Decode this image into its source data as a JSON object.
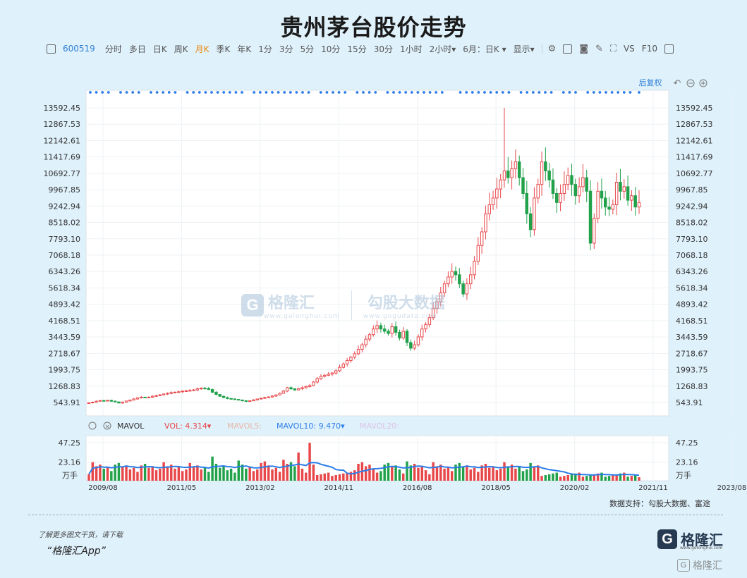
{
  "title": "贵州茅台股价走势",
  "toolbar": {
    "code": "600519",
    "periods": [
      "分时",
      "多日",
      "日K",
      "周K",
      "月K",
      "季K",
      "年K",
      "1分",
      "3分",
      "5分",
      "10分",
      "15分",
      "30分",
      "1小时",
      "2小时▾",
      "6月：日K ▾",
      "显示▾"
    ],
    "active_period": "月K",
    "vs": "VS",
    "f10": "F10"
  },
  "chart_controls": {
    "restore": "后复权"
  },
  "volume_legend": {
    "name": "MAVOL",
    "vol_label": "VOL: 4.314▾",
    "mavol5": "MAVOL5:",
    "mavol10": "MAVOL10: 9.470▾",
    "mavol20": "MAVOL20:",
    "unit": "万手"
  },
  "colors": {
    "up": "#e8474a",
    "down": "#20a14a",
    "ma": "#2b7de9",
    "axis_text": "#333333"
  },
  "chart_data": {
    "type": "candlestick",
    "price_axis_ticks": [
      13592.45,
      12867.53,
      12142.61,
      11417.69,
      10692.77,
      9967.85,
      9242.94,
      8518.02,
      7793.1,
      7068.18,
      6343.26,
      5618.34,
      4893.42,
      4168.51,
      3443.59,
      2718.67,
      1993.75,
      1268.83,
      543.91
    ],
    "price_axis_labels": [
      "13592.45",
      "12867.53",
      "12142.61",
      "11417.69",
      "10692.77",
      "9967.85",
      "9242.94",
      "8518.02",
      "7793.10",
      "7068.18",
      "6343.26",
      "5618.34",
      "4893.42",
      "4168.51",
      "3443.59",
      "2718.67",
      "1993.75",
      "1268.83",
      "543.91"
    ],
    "volume_axis_ticks": [
      47.25,
      23.16
    ],
    "volume_axis_labels": [
      "47.25",
      "23.16"
    ],
    "x_ticks": [
      "2009/08",
      "2011/05",
      "2013/02",
      "2014/11",
      "2016/08",
      "2018/05",
      "2020/02",
      "2021/11",
      "2023/08"
    ],
    "start_month": "2009/08",
    "close": [
      530,
      560,
      600,
      630,
      620,
      640,
      600,
      570,
      520,
      560,
      610,
      650,
      700,
      750,
      780,
      760,
      780,
      820,
      850,
      880,
      920,
      950,
      980,
      1000,
      1020,
      1050,
      1060,
      1080,
      1100,
      1150,
      1180,
      1160,
      1120,
      1000,
      900,
      820,
      760,
      720,
      700,
      680,
      650,
      620,
      600,
      620,
      660,
      700,
      730,
      760,
      790,
      830,
      880,
      950,
      1050,
      1200,
      1150,
      1100,
      1150,
      1200,
      1250,
      1300,
      1450,
      1600,
      1700,
      1750,
      1800,
      1850,
      1950,
      2100,
      2250,
      2400,
      2550,
      2700,
      2900,
      3100,
      3350,
      3550,
      3800,
      3950,
      3800,
      3700,
      3600,
      3900,
      3650,
      3400,
      3700,
      3200,
      2950,
      3100,
      3450,
      3800,
      4000,
      4300,
      4700,
      5000,
      5400,
      5800,
      6100,
      6350,
      6200,
      5800,
      5350,
      5800,
      6200,
      6800,
      7500,
      8100,
      8900,
      9300,
      9600,
      10000,
      10400,
      10800,
      10500,
      10900,
      11200,
      10500,
      9800,
      8900,
      8200,
      9600,
      10200,
      11200,
      10800,
      10400,
      9800,
      9400,
      9800,
      10200,
      10600,
      10200,
      9700,
      10100,
      10500,
      9900,
      7600,
      8700,
      9900,
      9600,
      9200,
      9100,
      9300,
      10300,
      9900,
      10100,
      9500,
      9700,
      9200,
      9400
    ]
  }
}
